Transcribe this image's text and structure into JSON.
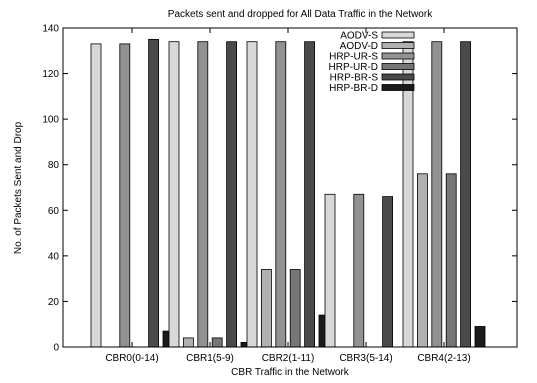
{
  "chart_data": {
    "type": "bar",
    "title": "Packets sent and dropped for All Data Traffic in the Network",
    "xlabel": "CBR Traffic in the Network",
    "ylabel": "No. of Packets Sent and Drop",
    "ylim": [
      0,
      140
    ],
    "yticks": [
      0,
      20,
      40,
      60,
      80,
      100,
      120,
      140
    ],
    "grid": false,
    "legend_position": "top-right",
    "categories": [
      "CBR0(0-14)",
      "CBR1(5-9)",
      "CBR2(1-11)",
      "CBR3(5-14)",
      "CBR4(2-13)"
    ],
    "series": [
      {
        "name": "AODV-S",
        "color": "#d8d8d8",
        "values": [
          133,
          134,
          134,
          67,
          134
        ]
      },
      {
        "name": "AODV-D",
        "color": "#b0b0b0",
        "values": [
          0,
          4,
          34,
          0,
          76
        ]
      },
      {
        "name": "HRP-UR-S",
        "color": "#929292",
        "values": [
          133,
          134,
          134,
          67,
          134
        ]
      },
      {
        "name": "HRP-UR-D",
        "color": "#767676",
        "values": [
          0,
          4,
          34,
          0,
          76
        ]
      },
      {
        "name": "HRP-BR-S",
        "color": "#4a4a4a",
        "values": [
          135,
          134,
          134,
          66,
          134
        ]
      },
      {
        "name": "HRP-BR-D",
        "color": "#1a1a1a",
        "values": [
          7,
          2,
          14,
          0,
          9
        ]
      }
    ]
  }
}
